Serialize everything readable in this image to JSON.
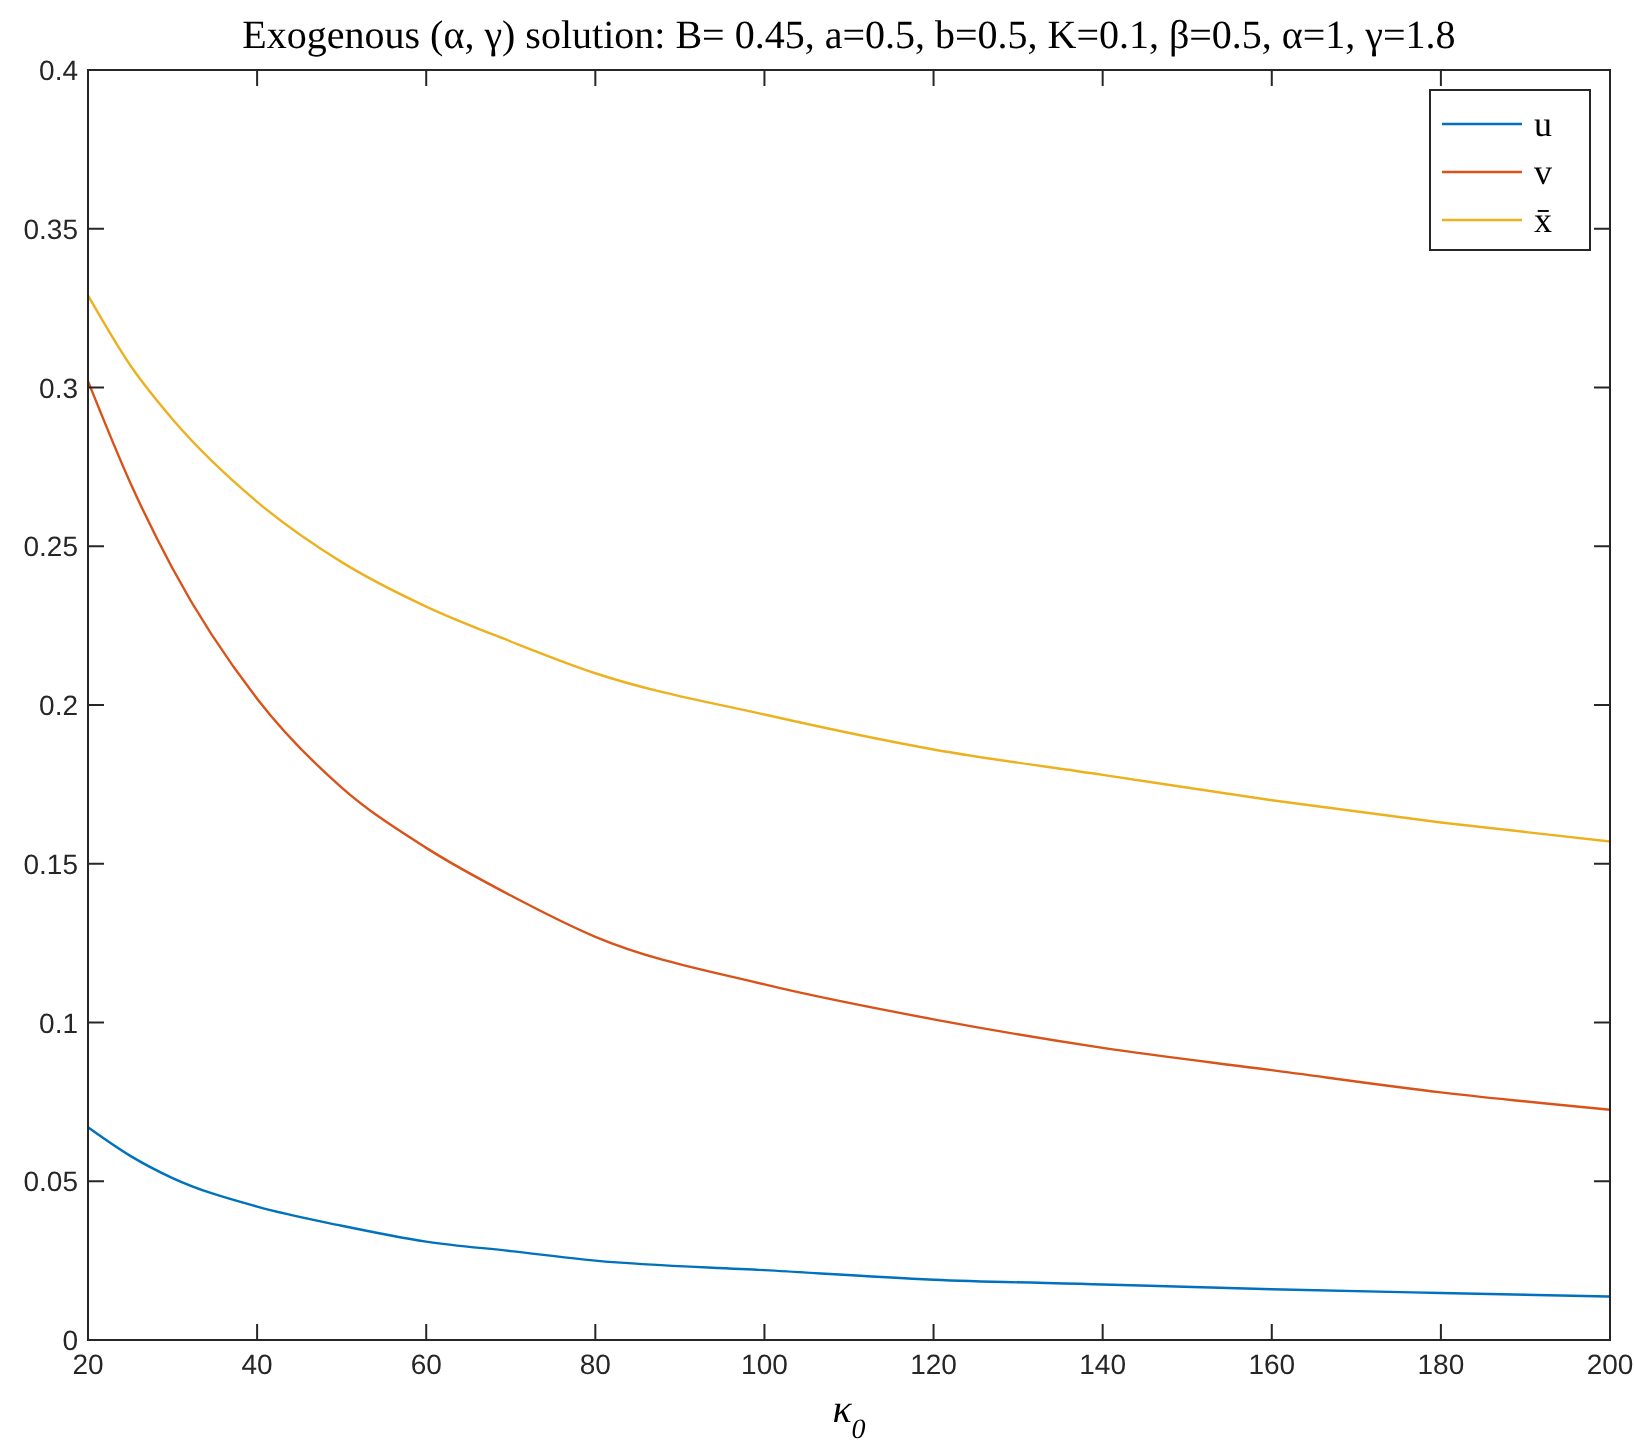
{
  "chart_data": {
    "type": "line",
    "title": "Exogenous (α, γ) solution: B= 0.45, a=0.5, b=0.5, K=0.1, β=0.5, α=1, γ=1.8",
    "xlabel": "κ$_{0}$",
    "x": [
      20,
      25,
      30,
      40,
      50,
      60,
      70,
      80,
      100,
      120,
      140,
      160,
      180,
      200
    ],
    "series": [
      {
        "name": "u",
        "color": "#0072bd",
        "values": [
          0.067,
          0.058,
          0.051,
          0.042,
          0.036,
          0.031,
          0.028,
          0.025,
          0.022,
          0.019,
          0.0175,
          0.016,
          0.0148,
          0.0137
        ]
      },
      {
        "name": "v",
        "color": "#d95319",
        "values": [
          0.302,
          0.27,
          0.243,
          0.202,
          0.174,
          0.155,
          0.14,
          0.127,
          0.112,
          0.101,
          0.092,
          0.085,
          0.078,
          0.0725
        ]
      },
      {
        "name": "x̄",
        "color": "#edb120",
        "values": [
          0.329,
          0.307,
          0.29,
          0.264,
          0.245,
          0.231,
          0.22,
          0.21,
          0.197,
          0.186,
          0.178,
          0.17,
          0.163,
          0.157
        ]
      }
    ],
    "xlim": [
      20,
      200
    ],
    "xticks": [
      20,
      40,
      60,
      80,
      100,
      120,
      140,
      160,
      180,
      200
    ],
    "ylim": [
      0,
      0.4
    ],
    "yticks": [
      0,
      0.05,
      0.1,
      0.15,
      0.2,
      0.25,
      0.3,
      0.35,
      0.4
    ],
    "grid": false,
    "legend": "top right",
    "marker": "none",
    "line_style": "solid"
  }
}
